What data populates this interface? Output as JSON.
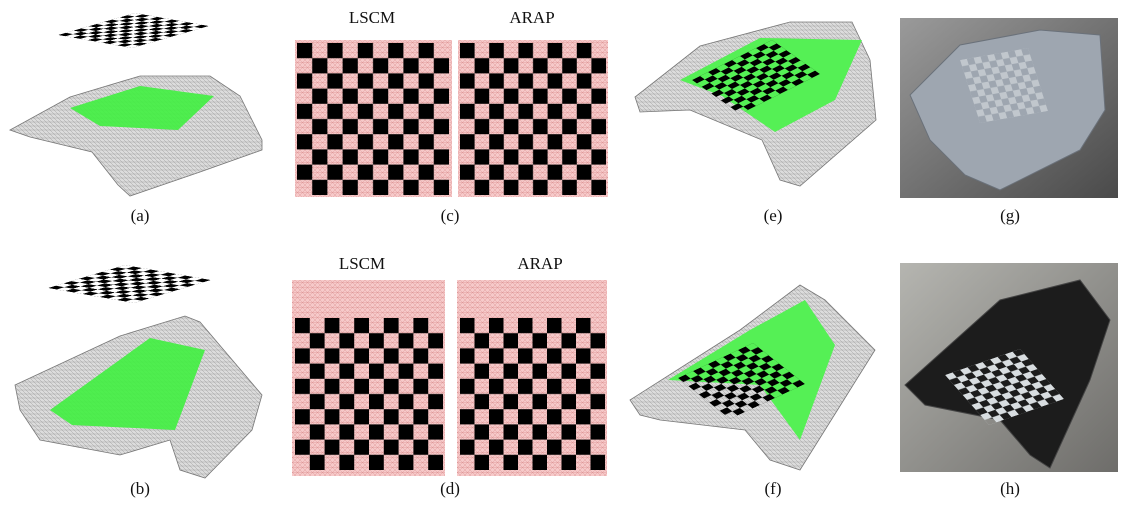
{
  "panels": {
    "a": "(a)",
    "b": "(b)",
    "c": "(c)",
    "d": "(d)",
    "e": "(e)",
    "f": "(f)",
    "g": "(g)",
    "h": "(h)"
  },
  "titles": {
    "c": [
      "LSCM",
      "ARAP"
    ],
    "d": [
      "LSCM",
      "ARAP"
    ]
  }
}
